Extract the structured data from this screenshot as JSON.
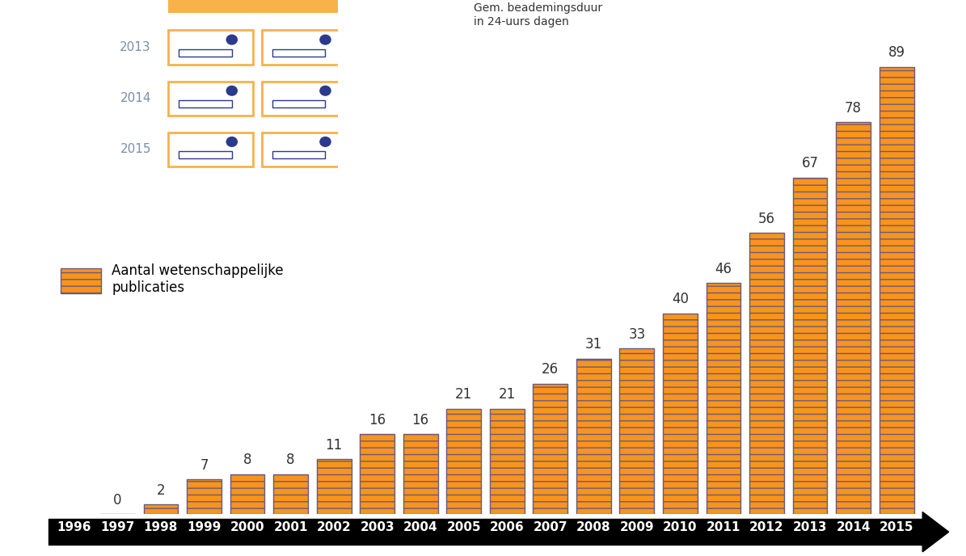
{
  "chart_data": {
    "type": "bar",
    "categories": [
      "1996",
      "1997",
      "1998",
      "1999",
      "2000",
      "2001",
      "2002",
      "2003",
      "2004",
      "2005",
      "2006",
      "2007",
      "2008",
      "2009",
      "2010",
      "2011",
      "2012",
      "2013",
      "2014",
      "2015"
    ],
    "series": [
      {
        "name": "Aantal wetenschappelijke\npublicaties",
        "color": "#f7941d",
        "values": [
          null,
          0,
          2,
          7,
          8,
          8,
          11,
          16,
          16,
          21,
          21,
          26,
          31,
          33,
          40,
          46,
          56,
          67,
          78,
          89
        ]
      }
    ],
    "data_labels": true,
    "tick_labels": "x",
    "legend": "center left",
    "inset": {
      "title": "Gem. beademingsduur\nin 24-uurs dagen",
      "years": [
        "2013",
        "2014",
        "2015"
      ]
    }
  }
}
